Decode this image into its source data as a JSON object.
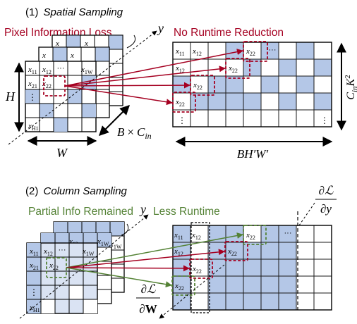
{
  "panel1": {
    "title_num": "(1)",
    "title_text": "Spatial Sampling",
    "label_loss": "Pixel Information Loss",
    "label_runtime": "No Runtime Reduction",
    "label_y": "y",
    "dim_H": "H",
    "dim_W": "W",
    "dim_depth_b": "B",
    "dim_depth_times": "×",
    "dim_depth_c": "C",
    "dim_depth_c_sub": "in",
    "dim_rows_c": "C",
    "dim_rows_sub": "in",
    "dim_rows_k": "K",
    "dim_rows_sup": "2",
    "dim_cols": "BH′W′",
    "cells": {
      "x11": "x",
      "x11_sub": "11",
      "x12": "x",
      "x12_sub": "12",
      "x1W": "x",
      "x1W_sub": "1W",
      "x21": "x",
      "x21_sub": "21",
      "x22": "x",
      "x22_sub": "22",
      "xH1": "x",
      "xH1_sub": "H1",
      "dots_h": "···",
      "dots_v": "⋮"
    }
  },
  "panel2": {
    "title_num": "(2)",
    "title_text": "Column Sampling",
    "label_partial": "Partial Info Remained",
    "label_runtime": "Less Runtime",
    "label_y": "y",
    "grad_y_num": "∂ℒ",
    "grad_y_den": "∂y",
    "grad_w_num": "∂ℒ",
    "grad_w_den": "∂W"
  },
  "colors": {
    "fill_blue": "#b4c7e7",
    "fill_light": "#dae3f3",
    "accent_red": "#a50021",
    "accent_green": "#548235",
    "border": "#1a1a1a"
  }
}
